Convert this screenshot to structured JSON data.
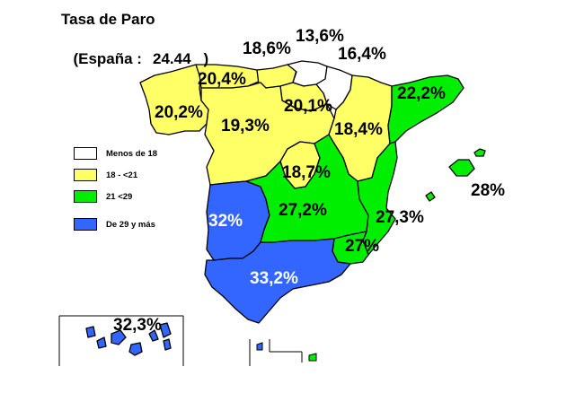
{
  "title": {
    "line1": "Tasa de Paro",
    "line2_prefix": "(España :",
    "line2_value": "24.44",
    "line2_suffix": ")"
  },
  "legend": [
    {
      "label": "Menos de 18",
      "color": "#ffffff"
    },
    {
      "label": "18 - <21",
      "color": "#ffff66"
    },
    {
      "label": "21 <29",
      "color": "#00ee00"
    },
    {
      "label": "De 29 y más",
      "color": "#3366ff"
    }
  ],
  "regions": [
    {
      "name": "Galicia",
      "value": "20,2%",
      "class": "yellow"
    },
    {
      "name": "Asturias",
      "value": "20,4%",
      "class": "yellow"
    },
    {
      "name": "Cantabria",
      "value": "18,6%",
      "class": "yellow"
    },
    {
      "name": "País Vasco",
      "value": "13,6%",
      "class": "white"
    },
    {
      "name": "Navarra",
      "value": "16,4%",
      "class": "white"
    },
    {
      "name": "La Rioja",
      "value": "20,1%",
      "class": "yellow"
    },
    {
      "name": "Castilla y León",
      "value": "19,3%",
      "class": "yellow"
    },
    {
      "name": "Aragón",
      "value": "18,4%",
      "class": "yellow"
    },
    {
      "name": "Cataluña",
      "value": "22,2%",
      "class": "green"
    },
    {
      "name": "Madrid",
      "value": "18,7%",
      "class": "yellow"
    },
    {
      "name": "Extremadura",
      "value": "32%",
      "class": "blue"
    },
    {
      "name": "Castilla-La Mancha",
      "value": "27,2%",
      "class": "green"
    },
    {
      "name": "Comunidad Valenciana",
      "value": "27,3%",
      "class": "green"
    },
    {
      "name": "Murcia",
      "value": "27%",
      "class": "green"
    },
    {
      "name": "Andalucía",
      "value": "33,2%",
      "class": "blue"
    },
    {
      "name": "Baleares",
      "value": "28%",
      "class": "green"
    },
    {
      "name": "Canarias",
      "value": "32,3%",
      "class": "blue"
    }
  ],
  "colors": {
    "white": "#ffffff",
    "yellow": "#ffff66",
    "green": "#00ee00",
    "blue": "#3366ff"
  }
}
